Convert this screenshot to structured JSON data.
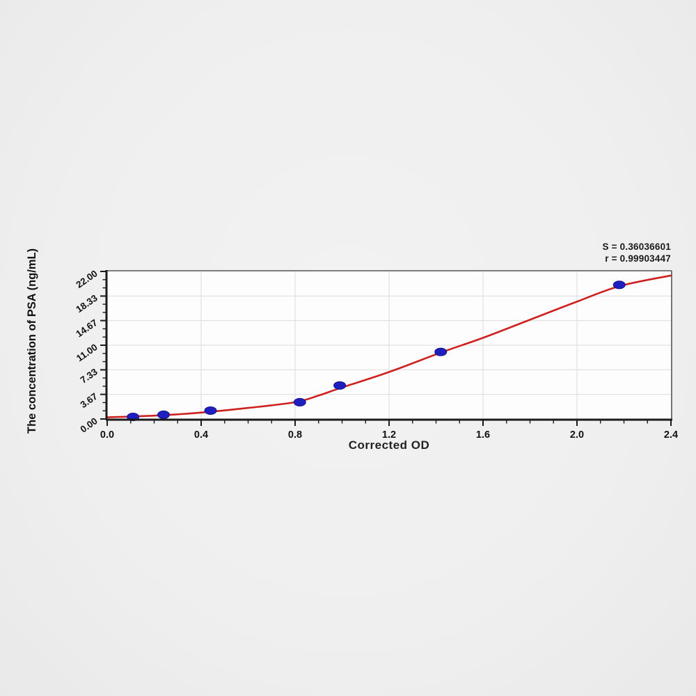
{
  "page": {
    "background_color": "#f0f0f0",
    "plot_background_color": "#fdfdfd",
    "grid_color": "#e2e2e2",
    "axis_color": "#1a1a1a"
  },
  "chart_data": {
    "type": "scatter",
    "title": "",
    "xlabel": "Corrected OD",
    "ylabel": "The concentration of PSA (ng/mL)",
    "xlim": [
      0,
      2.4
    ],
    "ylim": [
      0,
      22
    ],
    "grid": true,
    "legend": "none",
    "annotations": [
      "S = 0.36036601",
      "r = 0.99903447"
    ],
    "x_major_ticks": [
      0.0,
      0.4,
      0.8,
      1.2,
      1.6,
      2.0,
      2.4
    ],
    "x_tick_labels": [
      "0.0",
      "0.4",
      "0.8",
      "1.2",
      "1.6",
      "2.0",
      "2.4"
    ],
    "x_minor_step": 0.1,
    "y_major_ticks": [
      0,
      3.67,
      7.33,
      11.0,
      14.67,
      18.33,
      22.0
    ],
    "y_tick_labels": [
      "0.00",
      "3.67",
      "7.33",
      "11.00",
      "14.67",
      "18.33",
      "22.00"
    ],
    "y_minors_per_interval": 2,
    "series": [
      {
        "name": "standard-points",
        "type": "scatter",
        "color": "#1f1fc0",
        "edge_color": "#12128f",
        "points": [
          {
            "x": 0.11,
            "y": 0.31
          },
          {
            "x": 0.24,
            "y": 0.63
          },
          {
            "x": 0.44,
            "y": 1.25
          },
          {
            "x": 0.82,
            "y": 2.5
          },
          {
            "x": 0.99,
            "y": 5.0
          },
          {
            "x": 1.42,
            "y": 10.0
          },
          {
            "x": 2.18,
            "y": 20.0
          }
        ]
      },
      {
        "name": "fit-curve",
        "type": "line",
        "color": "#cf2020",
        "points": [
          {
            "x": 0.0,
            "y": 0.25
          },
          {
            "x": 0.2,
            "y": 0.5
          },
          {
            "x": 0.4,
            "y": 0.95
          },
          {
            "x": 0.6,
            "y": 1.65
          },
          {
            "x": 0.8,
            "y": 2.5
          },
          {
            "x": 0.9,
            "y": 3.5
          },
          {
            "x": 1.0,
            "y": 4.7
          },
          {
            "x": 1.2,
            "y": 7.0
          },
          {
            "x": 1.42,
            "y": 9.9
          },
          {
            "x": 1.6,
            "y": 12.1
          },
          {
            "x": 1.8,
            "y": 14.8
          },
          {
            "x": 2.0,
            "y": 17.5
          },
          {
            "x": 2.18,
            "y": 19.8
          },
          {
            "x": 2.4,
            "y": 21.4
          }
        ]
      }
    ]
  }
}
